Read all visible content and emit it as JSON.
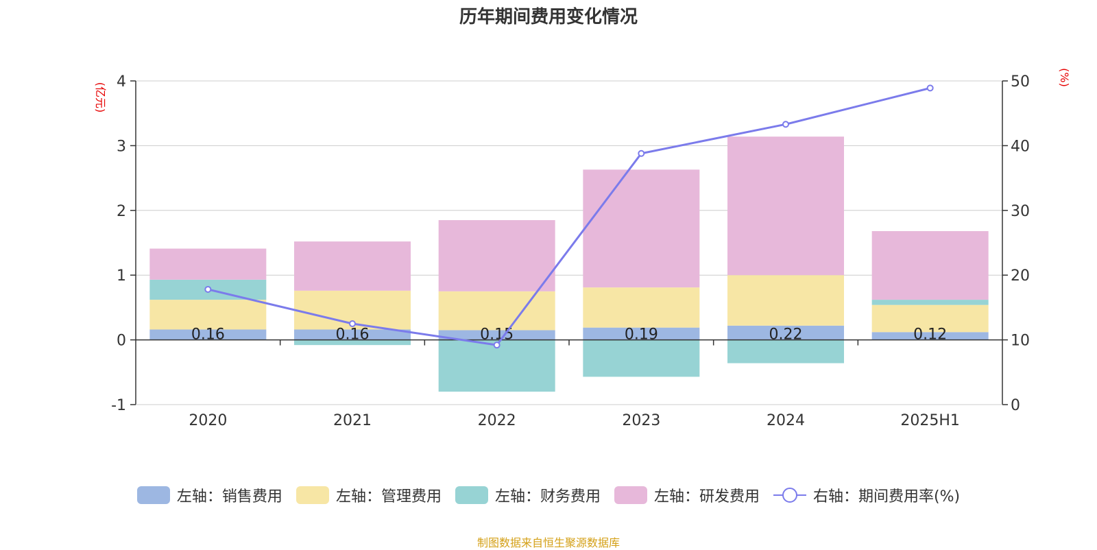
{
  "title": "历年期间费用变化情况",
  "source": "制图数据来自恒生聚源数据库",
  "colors": {
    "sales": "#9db7e2",
    "admin": "#f7e6a5",
    "finance": "#97d3d4",
    "rd": "#e7b8da",
    "rate": "#7b7beb",
    "unit": "#e60000"
  },
  "chart_data": {
    "type": "bar",
    "stacked": true,
    "categories": [
      "2020",
      "2021",
      "2022",
      "2023",
      "2024",
      "2025H1"
    ],
    "left_axis": {
      "unit_label": "(亿元)",
      "ylim": [
        -1,
        4
      ],
      "ticks": [
        "-1",
        "0",
        "1",
        "2",
        "3",
        "4"
      ]
    },
    "right_axis": {
      "unit_label": "(%)",
      "ylim": [
        0,
        50
      ],
      "ticks": [
        "0",
        "10",
        "20",
        "30",
        "40",
        "50"
      ]
    },
    "series": [
      {
        "name": "左轴：销售费用",
        "key": "sales",
        "axis": "left",
        "values": [
          0.16,
          0.16,
          0.15,
          0.19,
          0.22,
          0.12
        ]
      },
      {
        "name": "左轴：管理费用",
        "key": "admin",
        "axis": "left",
        "values": [
          0.46,
          0.6,
          0.6,
          0.62,
          0.78,
          0.42
        ]
      },
      {
        "name": "左轴：财务费用",
        "key": "finance",
        "axis": "left",
        "values": [
          0.31,
          -0.08,
          -0.8,
          -0.57,
          -0.36,
          0.08
        ]
      },
      {
        "name": "左轴：研发费用",
        "key": "rd",
        "axis": "left",
        "values": [
          0.48,
          0.76,
          1.1,
          1.82,
          2.14,
          1.06
        ]
      },
      {
        "name": "右轴：期间费用率(%)",
        "key": "rate",
        "axis": "right",
        "type": "line",
        "values": [
          17.8,
          12.5,
          9.2,
          38.8,
          43.3,
          48.9
        ]
      }
    ],
    "data_labels": [
      "0.16",
      "0.16",
      "0.15",
      "0.19",
      "0.22",
      "0.12"
    ],
    "legend_position": "bottom",
    "grid": true
  }
}
